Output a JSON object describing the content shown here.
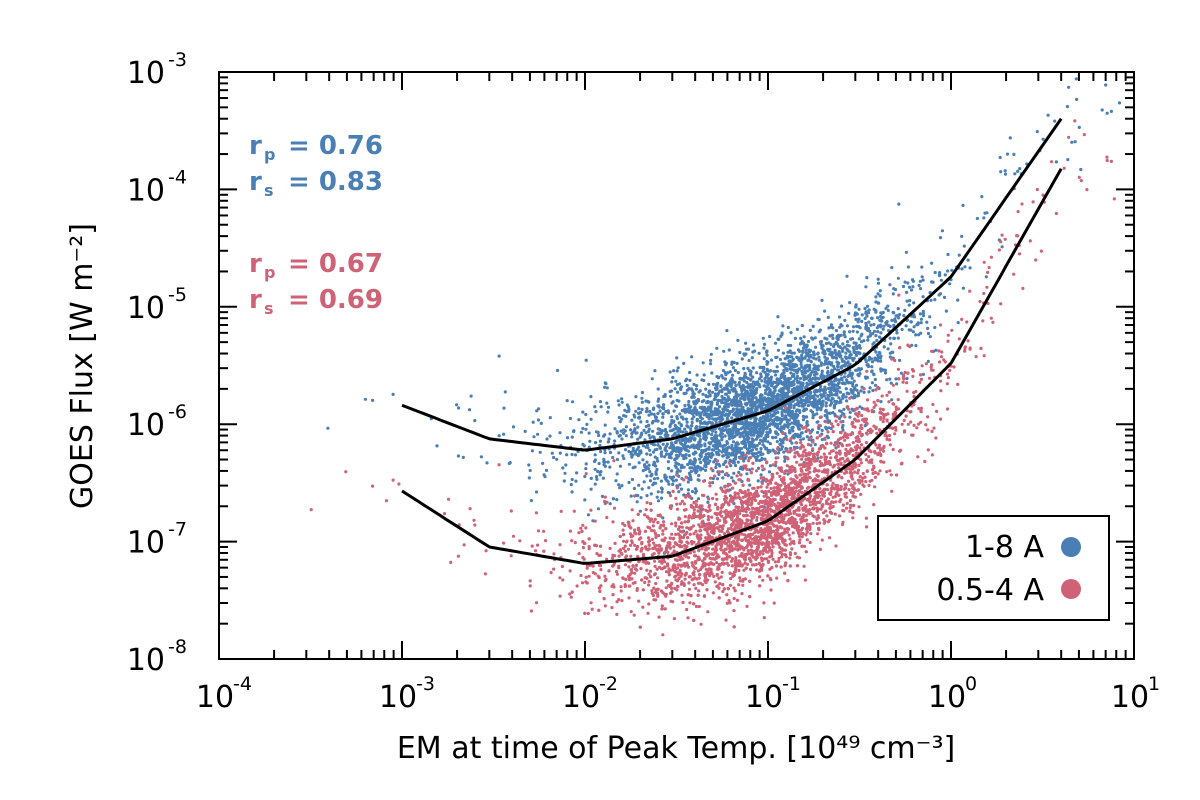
{
  "chart_data": {
    "type": "scatter",
    "title": "",
    "xlabel": "EM at time of Peak Temp. [10⁴⁹ cm⁻³]",
    "ylabel": "GOES Flux [W m⁻²]",
    "xscale": "log",
    "yscale": "log",
    "xlim": [
      0.0001,
      10
    ],
    "ylim": [
      1e-08,
      0.001
    ],
    "x_ticks": [
      {
        "base": "10",
        "exp": "-4"
      },
      {
        "base": "10",
        "exp": "-3"
      },
      {
        "base": "10",
        "exp": "-2"
      },
      {
        "base": "10",
        "exp": "-1"
      },
      {
        "base": "10",
        "exp": "0"
      },
      {
        "base": "10",
        "exp": "1"
      }
    ],
    "y_ticks": [
      {
        "base": "10",
        "exp": "-8"
      },
      {
        "base": "10",
        "exp": "-7"
      },
      {
        "base": "10",
        "exp": "-6"
      },
      {
        "base": "10",
        "exp": "-5"
      },
      {
        "base": "10",
        "exp": "-4"
      },
      {
        "base": "10",
        "exp": "-3"
      }
    ],
    "grid": false,
    "legend_position": "bottom-right",
    "series": [
      {
        "name": "1-8 A",
        "color": "#4a7fb5",
        "points_approx": 3500,
        "fit_curve": {
          "x": [
            0.001,
            0.003,
            0.01,
            0.03,
            0.1,
            0.3,
            1,
            4
          ],
          "y": [
            1.45e-06,
            7.5e-07,
            6e-07,
            7.5e-07,
            1.3e-06,
            3.2e-06,
            1.8e-05,
            0.0004
          ]
        }
      },
      {
        "name": "0.5-4 A",
        "color": "#cf6276",
        "points_approx": 3500,
        "fit_curve": {
          "x": [
            0.001,
            0.003,
            0.01,
            0.03,
            0.1,
            0.3,
            1,
            4
          ],
          "y": [
            2.7e-07,
            9e-08,
            6.5e-08,
            7.5e-08,
            1.5e-07,
            5e-07,
            3.3e-06,
            0.00015
          ]
        }
      }
    ],
    "annotations": [
      {
        "sym": "r",
        "sub": "p",
        "text": "= 0.76",
        "color": "#4a7fb5"
      },
      {
        "sym": "r",
        "sub": "s",
        "text": "= 0.83",
        "color": "#4a7fb5"
      },
      {
        "sym": "r",
        "sub": "p",
        "text": "= 0.67",
        "color": "#cf6276"
      },
      {
        "sym": "r",
        "sub": "s",
        "text": "= 0.69",
        "color": "#cf6276"
      }
    ]
  }
}
